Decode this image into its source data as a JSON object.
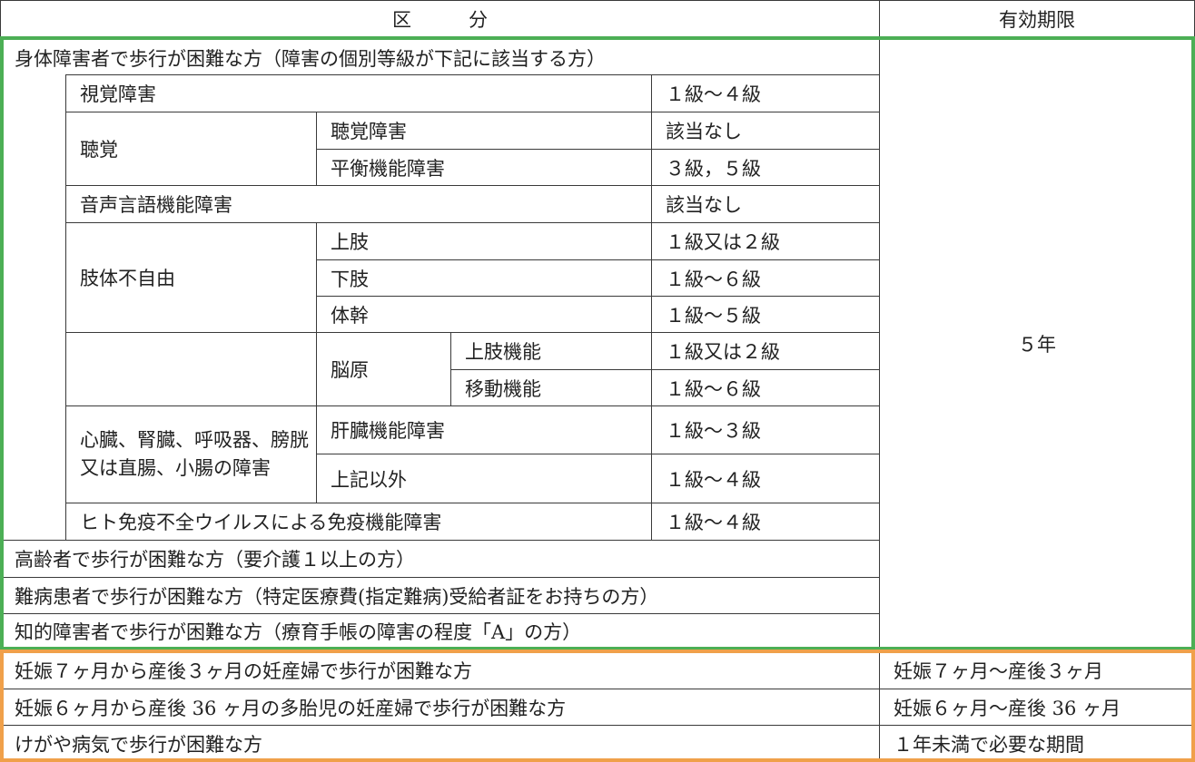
{
  "header": {
    "category": "区　　　分",
    "validity": "有効期限"
  },
  "physical": {
    "title": "身体障害者で歩行が困難な方（障害の個別等級が下記に該当する方）",
    "visual": {
      "label": "視覚障害",
      "grade": "１級～４級"
    },
    "hearing": {
      "label": "聴覚",
      "hearing_loss": {
        "label": "聴覚障害",
        "grade": "該当なし"
      },
      "balance": {
        "label": "平衡機能障害",
        "grade": "３級，５級"
      }
    },
    "speech": {
      "label": "音声言語機能障害",
      "grade": "該当なし"
    },
    "limb": {
      "label": "肢体不自由",
      "upper": {
        "label": "上肢",
        "grade": "１級又は２級"
      },
      "lower": {
        "label": "下肢",
        "grade": "１級～６級"
      },
      "trunk": {
        "label": "体幹",
        "grade": "１級～５級"
      }
    },
    "brain": {
      "label": "脳原",
      "upper": {
        "label": "上肢機能",
        "grade": "１級又は２級"
      },
      "mobility": {
        "label": "移動機能",
        "grade": "１級～６級"
      }
    },
    "internal": {
      "label": "心臓、腎臓、呼吸器、膀胱又は直腸、小腸の障害",
      "liver": {
        "label": "肝臓機能障害",
        "grade": "１級～３級"
      },
      "other": {
        "label": "上記以外",
        "grade": "１級～４級"
      }
    },
    "hiv": {
      "label": "ヒト免疫不全ウイルスによる免疫機能障害",
      "grade": "１級～４級"
    }
  },
  "elderly": "高齢者で歩行が困難な方（要介護１以上の方）",
  "intractable": "難病患者で歩行が困難な方（特定医療費(指定難病)受給者証をお持ちの方）",
  "intellectual": "知的障害者で歩行が困難な方（療育手帳の障害の程度「A」の方）",
  "green_validity": "５年",
  "orange_rows": [
    {
      "label": "妊娠７ヶ月から産後３ヶ月の妊産婦で歩行が困難な方",
      "validity": "妊娠７ヶ月～産後３ヶ月"
    },
    {
      "label": "妊娠６ヶ月から産後 36 ヶ月の多胎児の妊産婦で歩行が困難な方",
      "validity": "妊娠６ヶ月～産後 36 ヶ月"
    },
    {
      "label": "けがや病気で歩行が困難な方",
      "validity": "１年未満で必要な期間"
    }
  ],
  "colors": {
    "green_group": "#4caf55",
    "orange_group": "#f0a04a"
  }
}
